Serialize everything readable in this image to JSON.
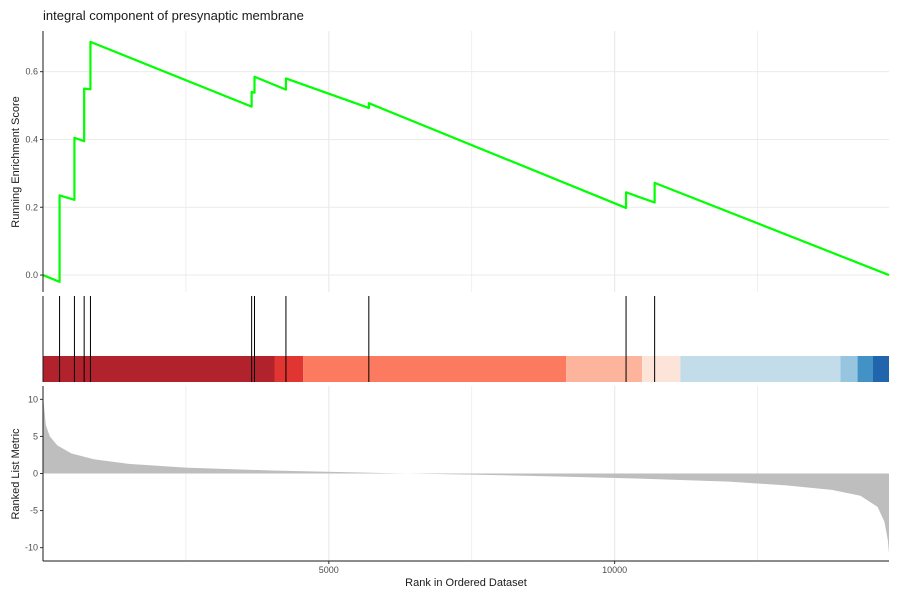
{
  "chart_data": {
    "type": "line",
    "title": "integral component of presynaptic membrane",
    "xlabel": "Rank in Ordered Dataset",
    "x_range": [
      0,
      14800
    ],
    "x_ticks": [
      5000,
      10000
    ],
    "x_tick_labels": [
      "5000",
      "10000"
    ],
    "grid": true,
    "panels": {
      "running_score": {
        "ylabel": "Running Enrichment Score",
        "y_range": [
          -0.05,
          0.72
        ],
        "y_ticks": [
          0.0,
          0.2,
          0.4,
          0.6
        ],
        "y_tick_labels": [
          "0.0",
          "0.2",
          "0.4",
          "0.6"
        ],
        "color": "#00ff00",
        "x": [
          0,
          290,
          290,
          550,
          550,
          720,
          720,
          830,
          830,
          3650,
          3650,
          3700,
          3700,
          4250,
          4250,
          5700,
          5700,
          10200,
          10200,
          10700,
          10700,
          14800
        ],
        "y": [
          0.0,
          -0.02,
          0.235,
          0.222,
          0.405,
          0.395,
          0.55,
          0.548,
          0.688,
          0.497,
          0.54,
          0.538,
          0.585,
          0.547,
          0.58,
          0.493,
          0.507,
          0.198,
          0.244,
          0.214,
          0.272,
          0.0
        ]
      },
      "gene_hits": {
        "x": [
          290,
          550,
          720,
          830,
          3650,
          3700,
          4250,
          5700,
          10200,
          10700
        ],
        "color_bands": [
          {
            "from": 0,
            "to": 4050,
            "color": "#b2222c"
          },
          {
            "from": 4050,
            "to": 4550,
            "color": "#e03531"
          },
          {
            "from": 4550,
            "to": 9150,
            "color": "#fb7a60"
          },
          {
            "from": 9150,
            "to": 10480,
            "color": "#fcb59c"
          },
          {
            "from": 10480,
            "to": 11150,
            "color": "#fde4d8"
          },
          {
            "from": 11150,
            "to": 13950,
            "color": "#c3dce9"
          },
          {
            "from": 13950,
            "to": 14250,
            "color": "#97c5e0"
          },
          {
            "from": 14250,
            "to": 14520,
            "color": "#4392c6"
          },
          {
            "from": 14520,
            "to": 14800,
            "color": "#2166ac"
          }
        ]
      },
      "ranked_metric": {
        "ylabel": "Ranked List Metric",
        "y_range": [
          -11.8,
          11.8
        ],
        "y_ticks": [
          10,
          5,
          0,
          -5,
          -10
        ],
        "y_tick_labels": [
          "10",
          "5",
          "0",
          "-5",
          "-10"
        ],
        "fill": "#bebebe",
        "x": [
          0,
          50,
          120,
          250,
          500,
          900,
          1500,
          2500,
          4000,
          6000,
          7500,
          9000,
          10500,
          12000,
          13000,
          13800,
          14300,
          14600,
          14720,
          14780,
          14800
        ],
        "y": [
          10.5,
          6.5,
          5.0,
          3.8,
          2.7,
          1.9,
          1.3,
          0.8,
          0.4,
          0.05,
          -0.15,
          -0.4,
          -0.7,
          -1.1,
          -1.6,
          -2.2,
          -3.0,
          -4.5,
          -6.5,
          -9.0,
          -10.8
        ]
      }
    }
  }
}
